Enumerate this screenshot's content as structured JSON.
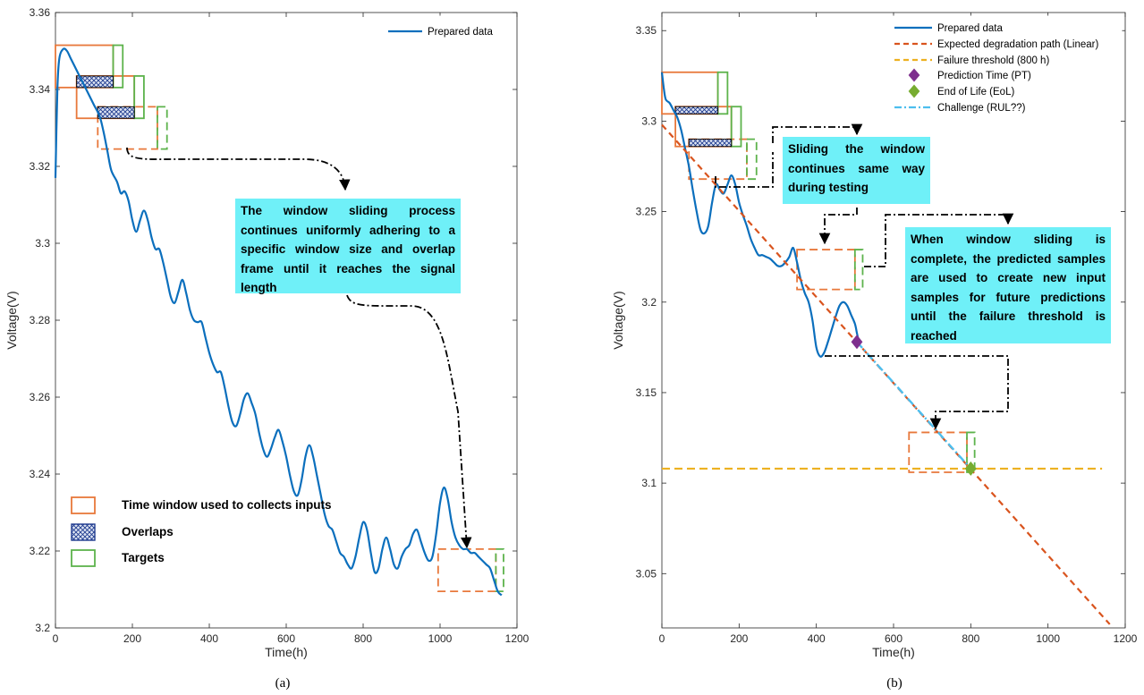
{
  "colors": {
    "series": "#0b6fbd",
    "window": "#e8783b",
    "overlap": "#1f3b8f",
    "target": "#5db34c",
    "expected": "#d9541e",
    "threshold": "#edb120",
    "pt": "#7e2f8e",
    "eol": "#77ac30",
    "challenge": "#4dbeee",
    "annotation_bg": "#6ff0f8"
  },
  "chart_data": [
    {
      "type": "line",
      "caption": "(a)",
      "xlabel": "Time(h)",
      "ylabel": "Voltage(V)",
      "xlim": [
        0,
        1200
      ],
      "ylim": [
        3.2,
        3.36
      ],
      "xticks": [
        "0",
        "200",
        "400",
        "600",
        "800",
        "1000",
        "1200"
      ],
      "yticks": [
        "3.2",
        "3.22",
        "3.24",
        "3.26",
        "3.28",
        "3.3",
        "3.32",
        "3.34",
        "3.36"
      ],
      "grid": false,
      "legend": {
        "position": "top-right",
        "entries": [
          "Prepared data"
        ]
      },
      "series": [
        {
          "name": "Prepared data",
          "x": [
            0,
            5,
            10,
            20,
            30,
            40,
            55,
            70,
            85,
            100,
            115,
            125,
            135,
            145,
            160,
            170,
            180,
            190,
            200,
            210,
            220,
            230,
            240,
            250,
            260,
            270,
            280,
            290,
            300,
            310,
            320,
            330,
            340,
            350,
            360,
            370,
            380,
            390,
            400,
            410,
            420,
            430,
            440,
            450,
            460,
            470,
            480,
            490,
            500,
            510,
            520,
            530,
            540,
            550,
            560,
            570,
            580,
            590,
            600,
            610,
            620,
            630,
            640,
            650,
            660,
            670,
            680,
            690,
            700,
            710,
            720,
            730,
            740,
            750,
            760,
            770,
            780,
            790,
            800,
            810,
            820,
            830,
            840,
            850,
            860,
            870,
            880,
            890,
            900,
            910,
            920,
            930,
            940,
            950,
            960,
            970,
            980,
            990,
            1000,
            1010,
            1020,
            1030,
            1040,
            1050,
            1060,
            1070,
            1080,
            1090,
            1100,
            1110,
            1120,
            1130,
            1140,
            1150,
            1160
          ],
          "y": [
            3.317,
            3.34,
            3.348,
            3.3505,
            3.35,
            3.348,
            3.345,
            3.342,
            3.339,
            3.336,
            3.333,
            3.329,
            3.324,
            3.319,
            3.316,
            3.313,
            3.3135,
            3.311,
            3.306,
            3.303,
            3.306,
            3.3085,
            3.306,
            3.3015,
            3.2985,
            3.2985,
            3.295,
            3.2905,
            3.286,
            3.2845,
            3.2875,
            3.2905,
            3.287,
            3.2825,
            3.28,
            3.2795,
            3.2795,
            3.2755,
            3.2715,
            3.2685,
            3.2665,
            3.2665,
            3.2625,
            3.2575,
            3.2535,
            3.2525,
            3.2555,
            3.2595,
            3.261,
            3.2585,
            3.2555,
            3.2505,
            3.2465,
            3.2445,
            3.2465,
            3.2495,
            3.2515,
            3.2485,
            3.2445,
            3.2395,
            3.2355,
            3.2345,
            3.2385,
            3.2445,
            3.2475,
            3.2445,
            3.2395,
            3.2345,
            3.2295,
            3.2265,
            3.2255,
            3.2225,
            3.2195,
            3.2185,
            3.2165,
            3.2155,
            3.2185,
            3.2235,
            3.2275,
            3.2255,
            3.2195,
            3.2145,
            3.2155,
            3.2205,
            3.2235,
            3.2205,
            3.2165,
            3.2155,
            3.2185,
            3.2205,
            3.2215,
            3.2245,
            3.2255,
            3.2225,
            3.2195,
            3.2175,
            3.2185,
            3.2245,
            3.2325,
            3.2365,
            3.2335,
            3.2275,
            3.2235,
            3.2215,
            3.2205,
            3.2205,
            3.2195,
            3.2195,
            3.2185,
            3.2175,
            3.2165,
            3.2155,
            3.2125,
            3.2095,
            3.2085
          ]
        }
      ],
      "window_boxes": [
        {
          "kind": "window",
          "x": [
            0,
            150
          ],
          "y": [
            3.3405,
            3.3515
          ]
        },
        {
          "kind": "window",
          "x": [
            55,
            205
          ],
          "y": [
            3.3325,
            3.3435
          ]
        },
        {
          "kind": "window",
          "x": [
            110,
            265
          ],
          "y": [
            3.3245,
            3.3355
          ],
          "dashed": true
        },
        {
          "kind": "window",
          "x": [
            995,
            1145
          ],
          "y": [
            3.2095,
            3.2205
          ],
          "dashed": true
        }
      ],
      "overlap_boxes": [
        {
          "x": [
            55,
            150
          ],
          "y": [
            3.3405,
            3.3435
          ]
        },
        {
          "x": [
            110,
            205
          ],
          "y": [
            3.3325,
            3.3355
          ]
        }
      ],
      "target_boxes": [
        {
          "x": [
            150,
            175
          ],
          "y": [
            3.3405,
            3.3515
          ]
        },
        {
          "x": [
            205,
            230
          ],
          "y": [
            3.3325,
            3.3435
          ]
        },
        {
          "x": [
            265,
            290
          ],
          "y": [
            3.3245,
            3.3355
          ],
          "dashed": true
        },
        {
          "x": [
            1145,
            1165
          ],
          "y": [
            3.2095,
            3.2205
          ],
          "dashed": true
        }
      ],
      "annotations": [
        {
          "text": "The window sliding process continues uniformly adhering to a specific window size and overlap frame until it reaches the signal length"
        }
      ],
      "legend_boxes": [
        {
          "kind": "window",
          "label": "Time window used to collects inputs"
        },
        {
          "kind": "overlap",
          "label": "Overlaps"
        },
        {
          "kind": "target",
          "label": "Targets"
        }
      ]
    },
    {
      "type": "line",
      "caption": "(b)",
      "xlabel": "Time(h)",
      "ylabel": "Voltage(V)",
      "xlim": [
        0,
        1200
      ],
      "ylim": [
        3.02,
        3.36
      ],
      "xticks": [
        "0",
        "200",
        "400",
        "600",
        "800",
        "1000",
        "1200"
      ],
      "yticks": [
        "3.05",
        "3.1",
        "3.15",
        "3.2",
        "3.25",
        "3.3",
        "3.35"
      ],
      "grid": false,
      "legend": {
        "position": "top-right",
        "entries": [
          "Prepared data",
          "Expected degradation path (Linear)",
          "Failure threshold (800 h)",
          "Prediction Time (PT)",
          "End of Life (EoL)",
          "Challenge (RUL??)"
        ]
      },
      "series": [
        {
          "name": "Prepared data",
          "x": [
            0,
            5,
            10,
            20,
            30,
            40,
            50,
            60,
            70,
            80,
            90,
            100,
            110,
            120,
            130,
            140,
            150,
            160,
            170,
            180,
            190,
            200,
            210,
            220,
            230,
            240,
            250,
            260,
            270,
            280,
            290,
            300,
            310,
            320,
            330,
            340,
            350,
            360,
            370,
            380,
            390,
            400,
            410,
            420,
            430,
            440,
            450,
            460,
            470,
            480,
            490,
            500,
            505,
            510
          ],
          "y": [
            3.327,
            3.318,
            3.312,
            3.31,
            3.306,
            3.302,
            3.295,
            3.285,
            3.275,
            3.262,
            3.25,
            3.24,
            3.238,
            3.242,
            3.255,
            3.265,
            3.262,
            3.26,
            3.265,
            3.27,
            3.265,
            3.255,
            3.248,
            3.242,
            3.235,
            3.23,
            3.226,
            3.226,
            3.225,
            3.224,
            3.222,
            3.22,
            3.22,
            3.222,
            3.225,
            3.23,
            3.222,
            3.212,
            3.205,
            3.2,
            3.19,
            3.175,
            3.17,
            3.172,
            3.178,
            3.185,
            3.192,
            3.198,
            3.2,
            3.198,
            3.193,
            3.188,
            3.183,
            3.178
          ]
        },
        {
          "name": "Expected degradation path (Linear)",
          "x": [
            0,
            1160
          ],
          "y": [
            3.298,
            3.022
          ]
        },
        {
          "name": "Failure threshold (800 h)",
          "x": [
            0,
            1140
          ],
          "y": [
            3.108,
            3.108
          ]
        },
        {
          "name": "Challenge (RUL??)",
          "x": [
            505,
            800
          ],
          "y": [
            3.178,
            3.108
          ]
        }
      ],
      "markers": [
        {
          "name": "Prediction Time (PT)",
          "x": 505,
          "y": 3.178
        },
        {
          "name": "End of Life (EoL)",
          "x": 800,
          "y": 3.108
        }
      ],
      "window_boxes": [
        {
          "kind": "window",
          "x": [
            0,
            145
          ],
          "y": [
            3.304,
            3.327
          ]
        },
        {
          "kind": "window",
          "x": [
            35,
            180
          ],
          "y": [
            3.286,
            3.308
          ]
        },
        {
          "kind": "window",
          "x": [
            70,
            220
          ],
          "y": [
            3.268,
            3.29
          ],
          "dashed": true
        },
        {
          "kind": "window",
          "x": [
            350,
            500
          ],
          "y": [
            3.207,
            3.229
          ],
          "dashed": true
        },
        {
          "kind": "window",
          "x": [
            640,
            790
          ],
          "y": [
            3.106,
            3.128
          ],
          "dashed": true
        }
      ],
      "overlap_boxes": [
        {
          "x": [
            35,
            145
          ],
          "y": [
            3.304,
            3.308
          ]
        },
        {
          "x": [
            70,
            180
          ],
          "y": [
            3.286,
            3.29
          ]
        }
      ],
      "target_boxes": [
        {
          "x": [
            145,
            170
          ],
          "y": [
            3.304,
            3.327
          ]
        },
        {
          "x": [
            180,
            205
          ],
          "y": [
            3.286,
            3.308
          ]
        },
        {
          "x": [
            220,
            245
          ],
          "y": [
            3.268,
            3.29
          ],
          "dashed": true
        },
        {
          "x": [
            500,
            520
          ],
          "y": [
            3.207,
            3.229
          ],
          "dashed": true
        },
        {
          "x": [
            790,
            810
          ],
          "y": [
            3.106,
            3.128
          ],
          "dashed": true
        }
      ],
      "annotations": [
        {
          "text": "Sliding the window continues same way during testing"
        },
        {
          "text": "When window sliding is complete, the predicted samples are used to create new input samples for future predictions until the failure threshold is reached"
        }
      ]
    }
  ]
}
